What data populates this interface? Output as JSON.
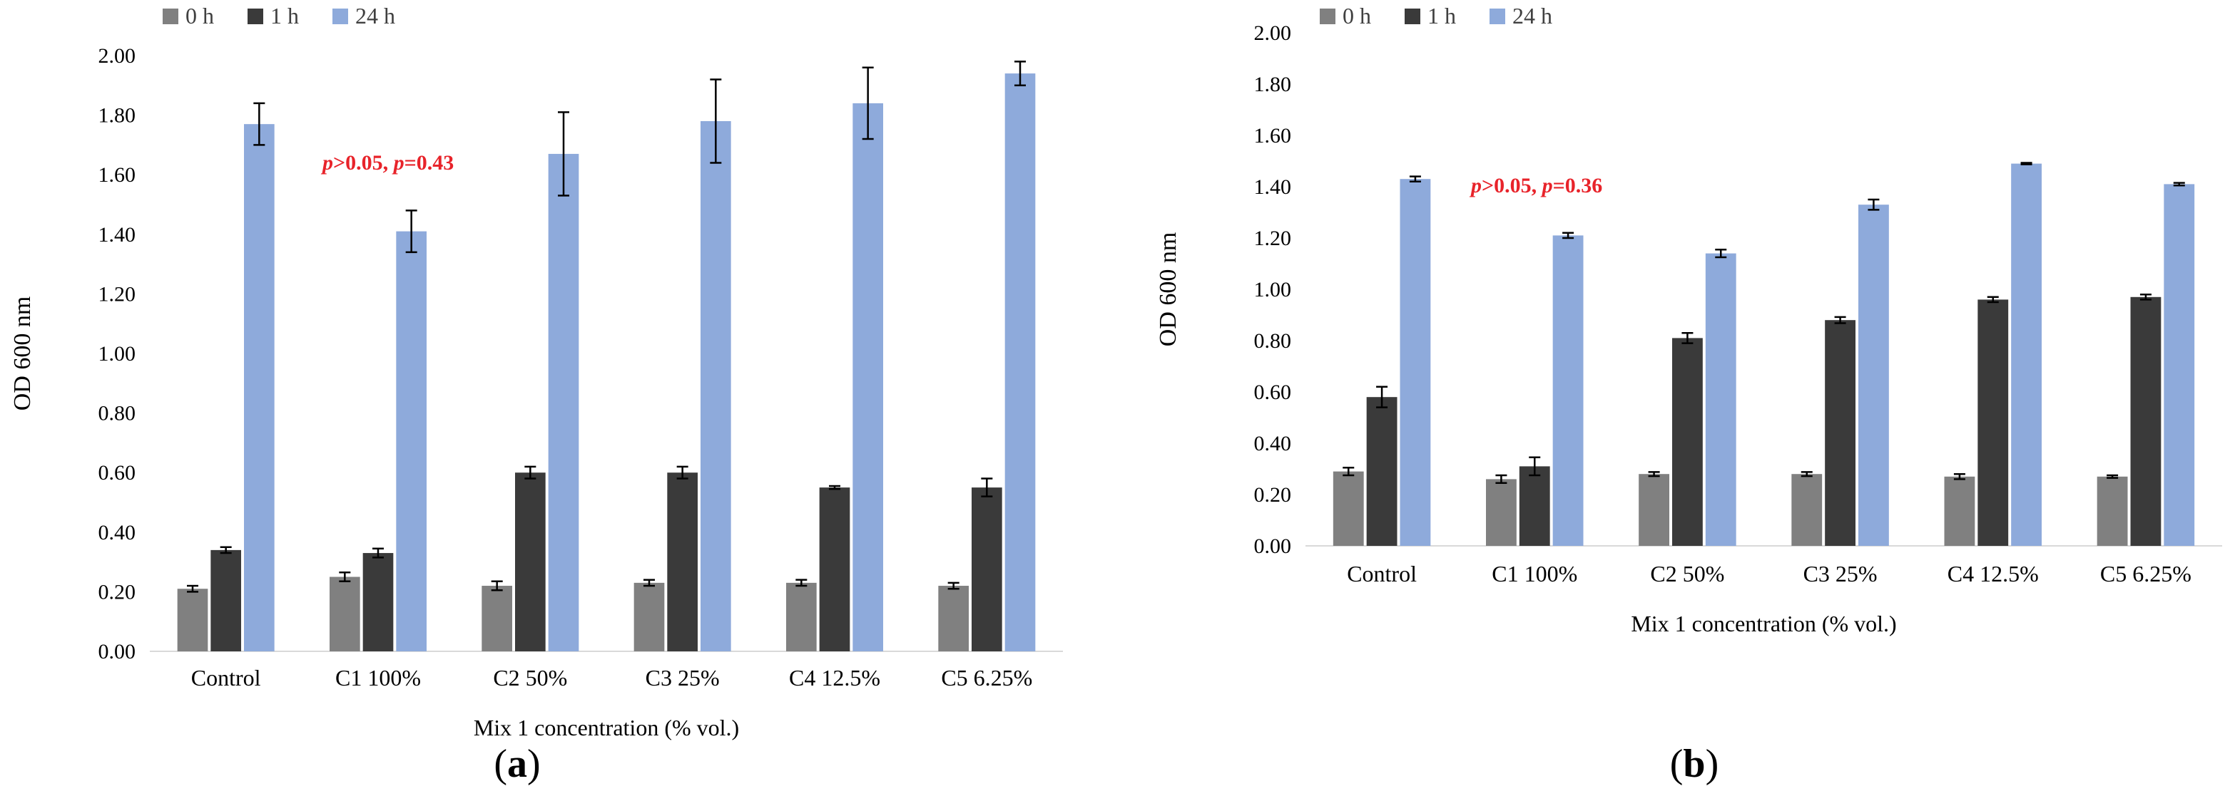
{
  "colors": {
    "h0": "#808080",
    "h1": "#3a3a3a",
    "h24": "#8eaadb",
    "annotation": "#e8232a",
    "axis": "#d9d9d9",
    "text": "#404040",
    "error": "#000000"
  },
  "chart_data": [
    {
      "type": "bar",
      "panel_label": "a",
      "categories": [
        "Control",
        "C1 100%",
        "C2 50%",
        "C3 25%",
        "C4 12.5%",
        "C5 6.25%"
      ],
      "series": [
        {
          "name": "0 h",
          "values": [
            0.21,
            0.25,
            0.22,
            0.23,
            0.23,
            0.22
          ],
          "errors": [
            0.01,
            0.015,
            0.015,
            0.01,
            0.01,
            0.01
          ]
        },
        {
          "name": "1 h",
          "values": [
            0.34,
            0.33,
            0.6,
            0.6,
            0.55,
            0.55
          ],
          "errors": [
            0.01,
            0.015,
            0.02,
            0.02,
            0.005,
            0.03
          ]
        },
        {
          "name": "24 h",
          "values": [
            1.77,
            1.41,
            1.67,
            1.78,
            1.84,
            1.94
          ],
          "errors": [
            0.07,
            0.07,
            0.14,
            0.14,
            0.12,
            0.04
          ]
        }
      ],
      "ylabel": "OD 600 nm",
      "xlabel": "Mix 1 concentration  (% vol.)",
      "ylim": [
        0,
        2.0
      ],
      "yticks": [
        "0.00",
        "0.20",
        "0.40",
        "0.60",
        "0.80",
        "1.00",
        "1.20",
        "1.40",
        "1.60",
        "1.80",
        "2.00"
      ],
      "annotation": {
        "p1": "p",
        "t1": ">0.05, ",
        "p2": "p",
        "t2": "=0.43",
        "category_index": 1,
        "y_value": 1.65
      },
      "legend_position": "top-left"
    },
    {
      "type": "bar",
      "panel_label": "b",
      "categories": [
        "Control",
        "C1 100%",
        "C2 50%",
        "C3 25%",
        "C4 12.5%",
        "C5 6.25%"
      ],
      "series": [
        {
          "name": "0 h",
          "values": [
            0.29,
            0.26,
            0.28,
            0.28,
            0.27,
            0.27
          ],
          "errors": [
            0.015,
            0.015,
            0.008,
            0.008,
            0.01,
            0.005
          ]
        },
        {
          "name": "1 h",
          "values": [
            0.58,
            0.31,
            0.81,
            0.88,
            0.96,
            0.97
          ],
          "errors": [
            0.04,
            0.035,
            0.02,
            0.012,
            0.01,
            0.01
          ]
        },
        {
          "name": "24 h",
          "values": [
            1.43,
            1.21,
            1.14,
            1.33,
            1.49,
            1.41
          ],
          "errors": [
            0.01,
            0.01,
            0.015,
            0.02,
            0.003,
            0.005
          ]
        }
      ],
      "ylabel": "OD 600 nm",
      "xlabel": "Mix 1 concentration  (% vol.)",
      "ylim": [
        0,
        2.0
      ],
      "yticks": [
        "0.00",
        "0.20",
        "0.40",
        "0.60",
        "0.80",
        "1.00",
        "1.20",
        "1.40",
        "1.60",
        "1.80",
        "2.00"
      ],
      "annotation": {
        "p1": "p",
        "t1": ">0.05, ",
        "p2": "p",
        "t2": "=0.36",
        "category_index": 1,
        "y_value": 1.42
      },
      "legend_position": "top-left"
    }
  ]
}
